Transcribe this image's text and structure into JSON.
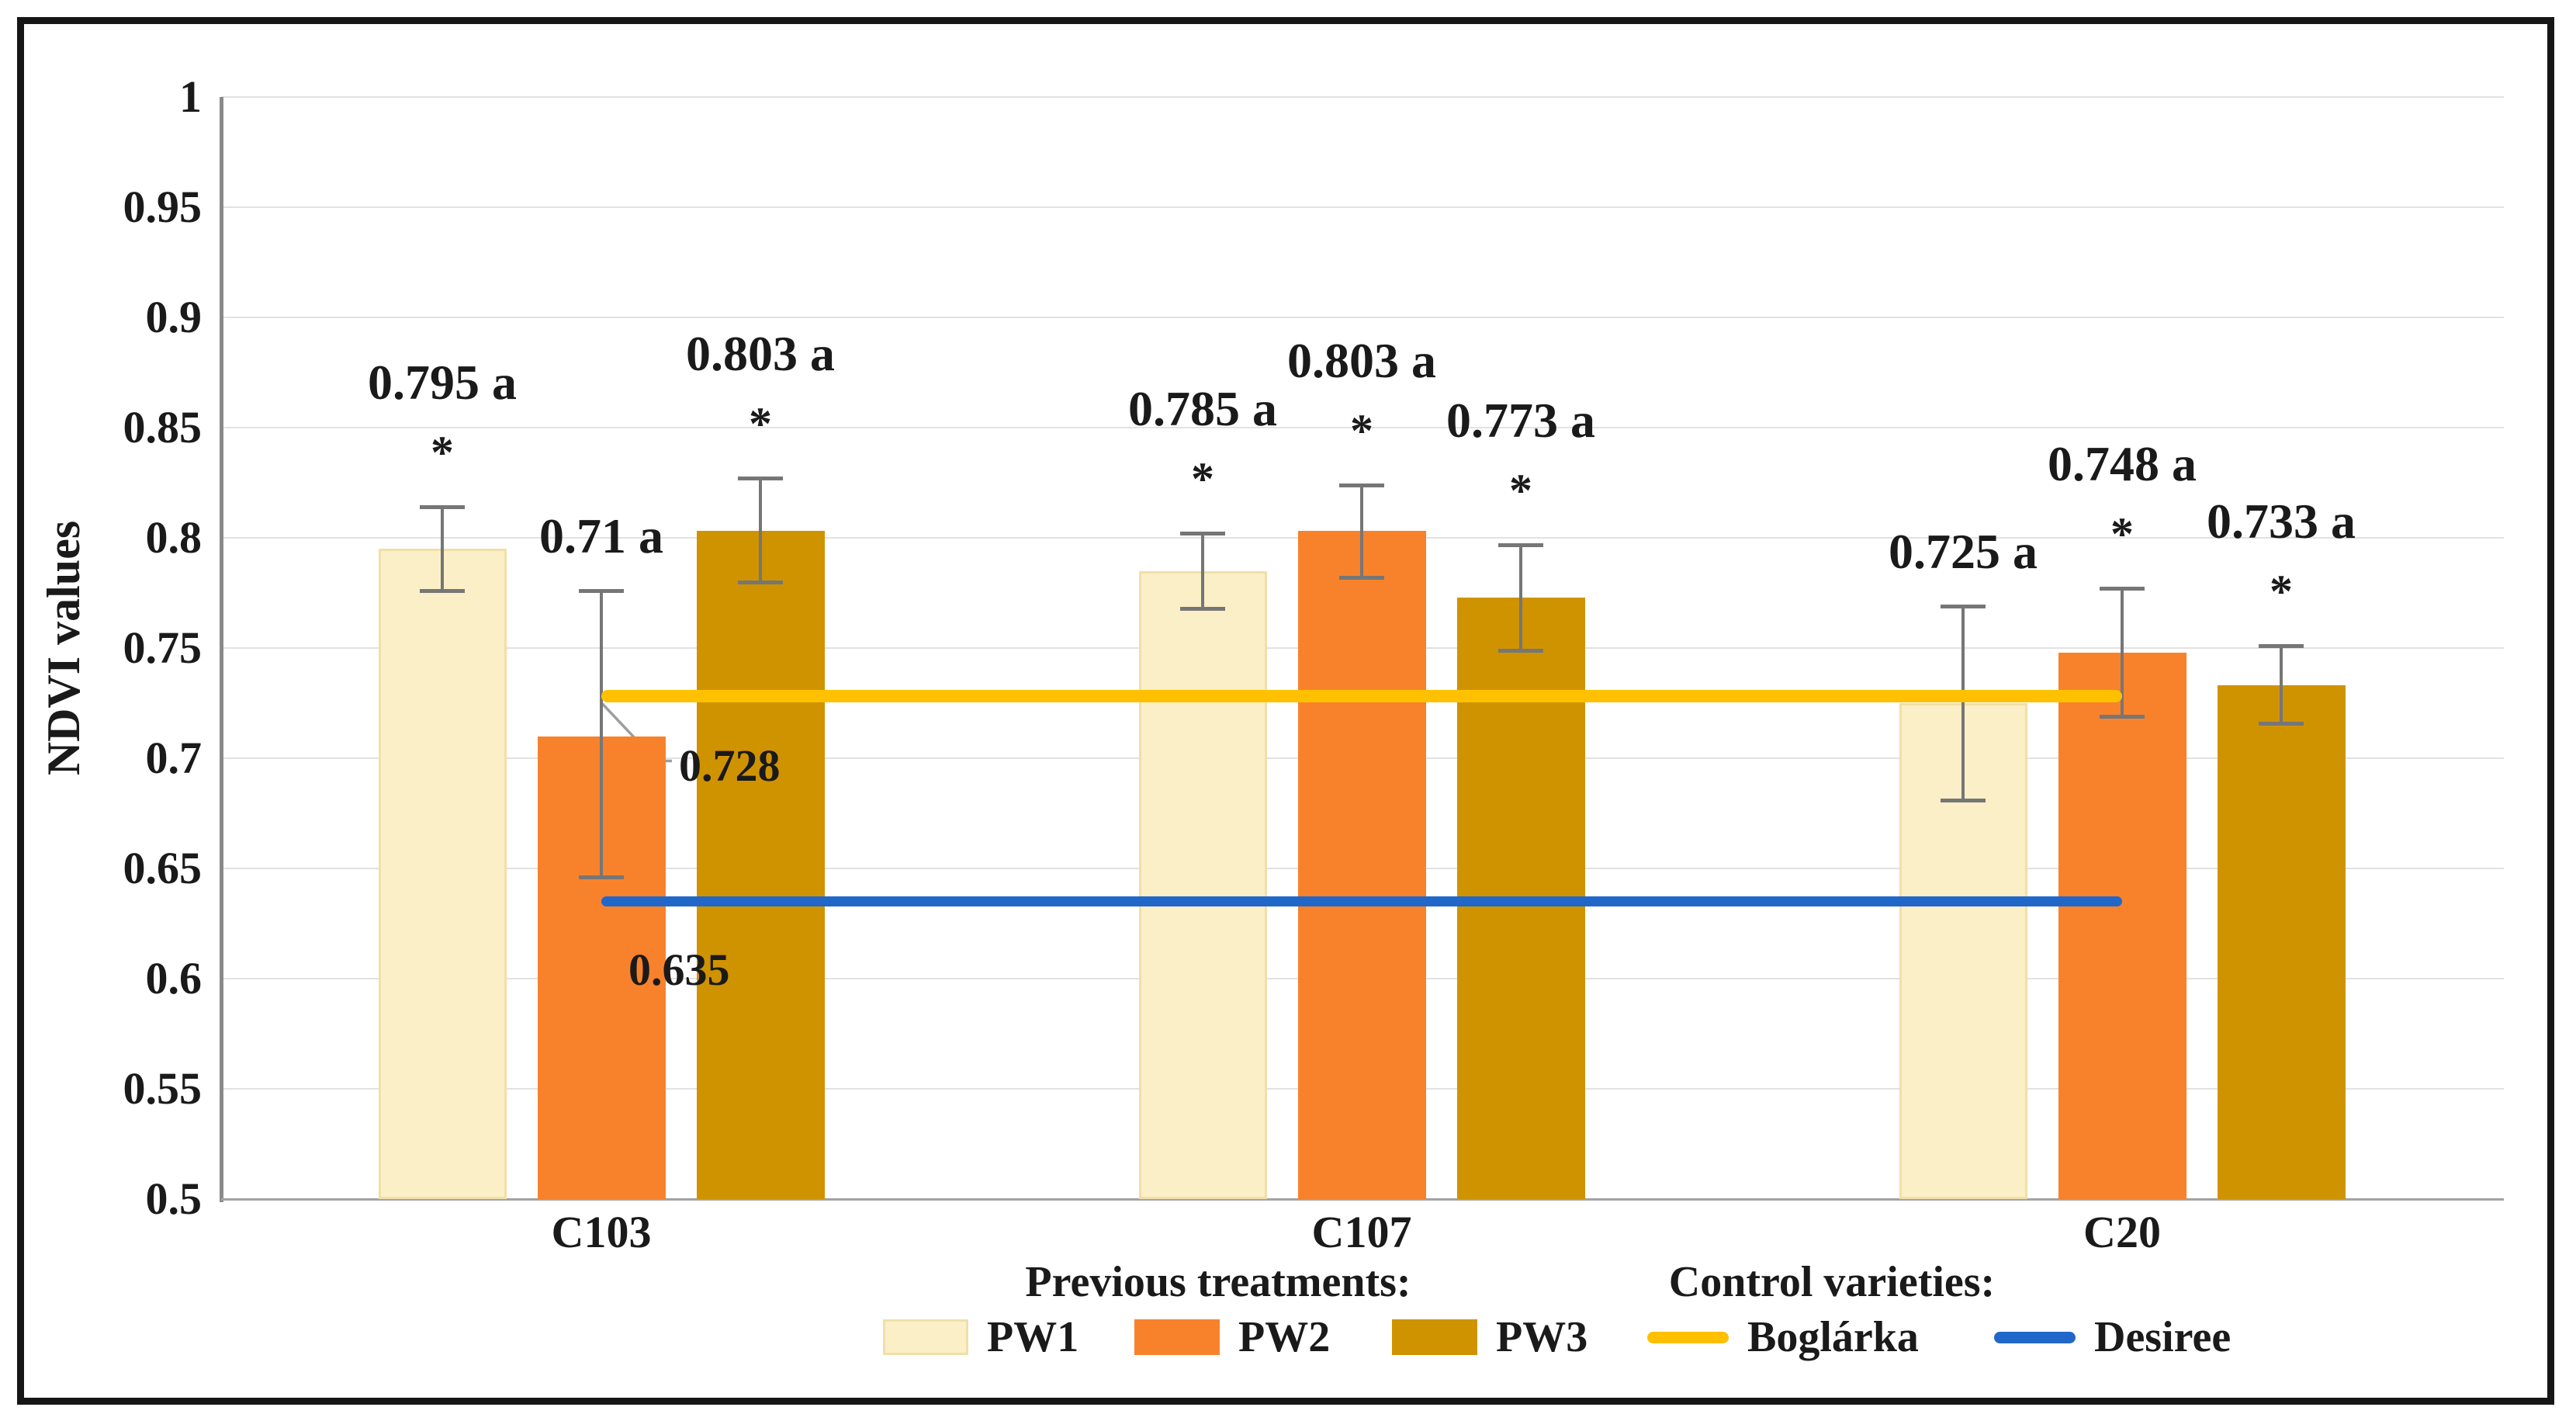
{
  "figure": {
    "background": "#ffffff",
    "frame_color": "#161616"
  },
  "colors": {
    "grid": "#e2e2e2",
    "axis": "#8a8a8a",
    "error_bar": "#767676",
    "leader": "#9e9e9e",
    "text": "#1a1a1a"
  },
  "chart_data": {
    "type": "bar",
    "title": "",
    "xlabel": "",
    "ylabel": "NDVI values",
    "ylim": [
      0.5,
      1.0
    ],
    "grid": true,
    "legend_position": "bottom",
    "y_ticks": [
      "1",
      "0.95",
      "0.9",
      "0.85",
      "0.8",
      "0.75",
      "0.7",
      "0.65",
      "0.6",
      "0.55",
      "0.5"
    ],
    "categories": [
      "C103",
      "C107",
      "C20"
    ],
    "significance_marker": "*",
    "series": [
      {
        "name": "PW1",
        "color": "#FBEFC8",
        "border_color": "#F0E0A8",
        "values": [
          0.795,
          0.785,
          0.725
        ],
        "labels": [
          "0.795 a",
          "0.785 a",
          "0.725 a"
        ],
        "significant": [
          true,
          true,
          false
        ],
        "err_low": [
          0.776,
          0.768,
          0.681
        ],
        "err_high": [
          0.814,
          0.802,
          0.769
        ]
      },
      {
        "name": "PW2",
        "color": "#F8822B",
        "border_color": "",
        "values": [
          0.71,
          0.803,
          0.748
        ],
        "labels": [
          "0.71 a",
          "0.803 a",
          "0.748 a"
        ],
        "significant": [
          false,
          true,
          true
        ],
        "err_low": [
          0.646,
          0.782,
          0.719
        ],
        "err_high": [
          0.776,
          0.824,
          0.777
        ]
      },
      {
        "name": "PW3",
        "color": "#D09300",
        "border_color": "",
        "values": [
          0.803,
          0.773,
          0.733
        ],
        "labels": [
          "0.803 a",
          "0.773 a",
          "0.733 a"
        ],
        "significant": [
          true,
          true,
          true
        ],
        "err_low": [
          0.78,
          0.749,
          0.716
        ],
        "err_high": [
          0.827,
          0.797,
          0.751
        ]
      }
    ],
    "control_lines": [
      {
        "name": "Boglárka",
        "value": 0.728,
        "label": "0.728",
        "color": "#FFC000"
      },
      {
        "name": "Desiree",
        "value": 0.635,
        "label": "0.635",
        "color": "#2167C9"
      }
    ]
  },
  "legend": {
    "treatments_header": "Previous treatments:",
    "controls_header": "Control varieties:"
  }
}
